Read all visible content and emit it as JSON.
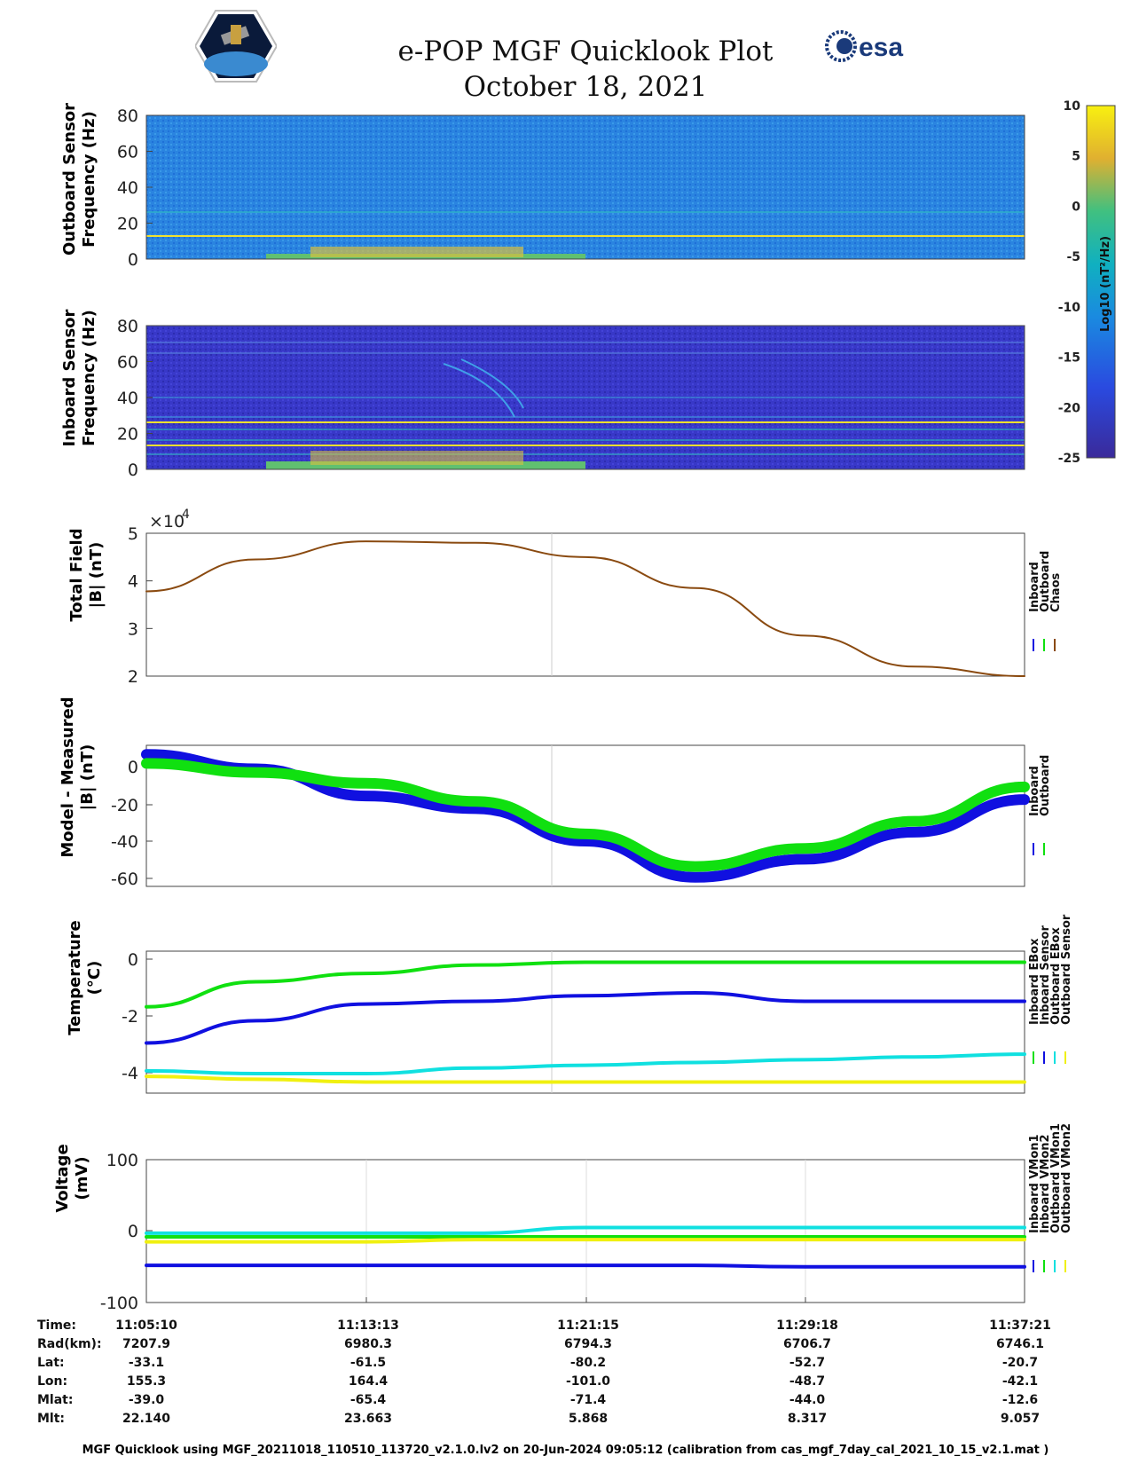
{
  "header": {
    "title_line1": "e-POP MGF Quicklook Plot",
    "title_line2": "October 18, 2021",
    "logo_left": "cassiope-mission-logo",
    "logo_right_text": "esa"
  },
  "colorbar": {
    "ticks": [
      "10",
      "5",
      "0",
      "-5",
      "-10",
      "-15",
      "-20",
      "-25"
    ],
    "min": -25,
    "max": 10,
    "label": "Log10 (nT²/Hz)"
  },
  "panels": {
    "outboard_spec": {
      "ylabel1": "Outboard Sensor",
      "ylabel2": "Frequency (Hz)",
      "yticks": [
        "80",
        "60",
        "40",
        "20",
        "0"
      ]
    },
    "inboard_spec": {
      "ylabel1": "Inboard Sensor",
      "ylabel2": "Frequency (Hz)",
      "yticks": [
        "80",
        "60",
        "40",
        "20",
        "0"
      ]
    },
    "total_field": {
      "ylabel1": "Total Field",
      "ylabel2": "|B| (nT)",
      "yticks": [
        "5",
        "4",
        "3",
        "2"
      ],
      "exponent_base": "×10",
      "exponent": "4"
    },
    "model_measured": {
      "ylabel1": "Model - Measured",
      "ylabel2": "|B| (nT)",
      "yticks": [
        "0",
        "-20",
        "-40",
        "-60"
      ]
    },
    "temperature": {
      "ylabel1": "Temperature",
      "ylabel2": "(°C)",
      "yticks": [
        "0",
        "-2",
        "-4"
      ]
    },
    "voltage": {
      "ylabel1": "Voltage",
      "ylabel2": "(mV)",
      "yticks": [
        "100",
        "0",
        "-100"
      ]
    }
  },
  "legends": {
    "total_field": [
      "Inboard",
      "Outboard",
      "Chaos"
    ],
    "model_measured": [
      "Inboard",
      "Outboard"
    ],
    "temperature": [
      "Inboard EBox",
      "Inboard Sensor",
      "Outboard EBox",
      "Outboard Sensor"
    ],
    "voltage": [
      "Inboard VMon1",
      "Inboard VMon2",
      "Outboard VMon1",
      "Outboard VMon2"
    ]
  },
  "colors": {
    "inboard": "#1010e0",
    "outboard": "#10e010",
    "chaos": "#e01010",
    "cyan": "#10e0e0",
    "yellow": "#f0f010",
    "total_line": "#8a4a10"
  },
  "chart_data": [
    {
      "type": "heatmap",
      "name": "Outboard Sensor spectrogram",
      "ylim": [
        0,
        80
      ]
    },
    {
      "type": "heatmap",
      "name": "Inboard Sensor spectrogram",
      "ylim": [
        0,
        80
      ]
    },
    {
      "type": "line",
      "ylabel": "Total Field |B| (nT)",
      "ylim": [
        20000,
        50000
      ],
      "x": [
        "11:05:10",
        "11:09:10",
        "11:13:13",
        "11:17:15",
        "11:21:15",
        "11:25:15",
        "11:29:18",
        "11:33:20",
        "11:37:21"
      ],
      "series": [
        {
          "name": "Chaos",
          "values": [
            37800,
            44500,
            48300,
            48000,
            45000,
            38500,
            28500,
            22000,
            20000
          ]
        }
      ]
    },
    {
      "type": "line",
      "ylabel": "Model - Measured |B| (nT)",
      "ylim": [
        -65,
        13
      ],
      "x": [
        "11:05:10",
        "11:09:10",
        "11:13:13",
        "11:17:15",
        "11:21:15",
        "11:25:15",
        "11:29:18",
        "11:33:20",
        "11:37:21"
      ],
      "series": [
        {
          "name": "Inboard",
          "values": [
            8,
            0,
            -15,
            -22,
            -40,
            -60,
            -50,
            -35,
            -17
          ]
        },
        {
          "name": "Outboard",
          "values": [
            3,
            -2,
            -8,
            -18,
            -36,
            -54,
            -44,
            -29,
            -10
          ]
        }
      ]
    },
    {
      "type": "line",
      "ylabel": "Temperature (°C)",
      "ylim": [
        -4.8,
        0.3
      ],
      "x": [
        "11:05:10",
        "11:09:10",
        "11:13:13",
        "11:17:15",
        "11:21:15",
        "11:25:15",
        "11:29:18",
        "11:33:20",
        "11:37:21"
      ],
      "series": [
        {
          "name": "Inboard EBox",
          "values": [
            -1.7,
            -0.8,
            -0.5,
            -0.2,
            -0.1,
            -0.1,
            -0.1,
            -0.1,
            -0.1
          ]
        },
        {
          "name": "Inboard Sensor",
          "values": [
            -3.0,
            -2.2,
            -1.6,
            -1.5,
            -1.3,
            -1.2,
            -1.5,
            -1.5,
            -1.5
          ]
        },
        {
          "name": "Outboard EBox",
          "values": [
            -4.0,
            -4.1,
            -4.1,
            -3.9,
            -3.8,
            -3.7,
            -3.6,
            -3.5,
            -3.4
          ]
        },
        {
          "name": "Outboard Sensor",
          "values": [
            -4.2,
            -4.3,
            -4.4,
            -4.4,
            -4.4,
            -4.4,
            -4.4,
            -4.4,
            -4.4
          ]
        }
      ]
    },
    {
      "type": "line",
      "ylabel": "Voltage (mV)",
      "ylim": [
        -100,
        100
      ],
      "x": [
        "11:05:10",
        "11:09:10",
        "11:13:13",
        "11:17:15",
        "11:21:15",
        "11:25:15",
        "11:29:18",
        "11:33:20",
        "11:37:21"
      ],
      "series": [
        {
          "name": "Inboard VMon1",
          "values": [
            -48,
            -48,
            -48,
            -48,
            -48,
            -48,
            -50,
            -50,
            -50
          ]
        },
        {
          "name": "Inboard VMon2",
          "values": [
            -8,
            -8,
            -8,
            -8,
            -8,
            -8,
            -8,
            -8,
            -8
          ]
        },
        {
          "name": "Outboard VMon1",
          "values": [
            -3,
            -3,
            -3,
            -3,
            5,
            5,
            5,
            5,
            5
          ]
        },
        {
          "name": "Outboard VMon2",
          "values": [
            -15,
            -15,
            -15,
            -12,
            -12,
            -12,
            -12,
            -12,
            -12
          ]
        }
      ]
    }
  ],
  "table": {
    "labels": [
      "Time:",
      "Rad(km):",
      "Lat:",
      "Lon:",
      "Mlat:",
      "Mlt:"
    ],
    "columns": [
      [
        "11:05:10",
        "7207.9",
        "-33.1",
        "155.3",
        "-39.0",
        "22.140"
      ],
      [
        "11:13:13",
        "6980.3",
        "-61.5",
        "164.4",
        "-65.4",
        "23.663"
      ],
      [
        "11:21:15",
        "6794.3",
        "-80.2",
        "-101.0",
        "-71.4",
        "5.868"
      ],
      [
        "11:29:18",
        "6706.7",
        "-52.7",
        "-48.7",
        "-44.0",
        "8.317"
      ],
      [
        "11:37:21",
        "6746.1",
        "-20.7",
        "-42.1",
        "-12.6",
        "9.057"
      ]
    ]
  },
  "footer": "MGF Quicklook using MGF_20211018_110510_113720_v2.1.0.lv2 on 20-Jun-2024 09:05:12 (calibration from cas_mgf_7day_cal_2021_10_15_v2.1.mat )"
}
